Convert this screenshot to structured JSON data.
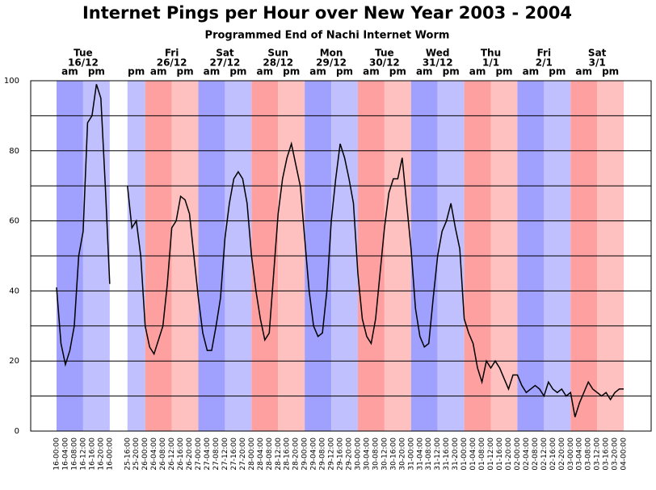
{
  "chart_data": {
    "type": "line",
    "title": "Internet Pings per Hour over New Year 2003 - 2004",
    "subtitle": "Programmed End of Nachi Internet Worm",
    "categories": [
      "16-00:00",
      null,
      "16-04:00",
      null,
      "16-08:00",
      null,
      "16-12:00",
      null,
      "16-16:00",
      null,
      "16-20:00",
      null,
      "16-00:00",
      null,
      null,
      null,
      "25-16:00",
      null,
      "25-20:00",
      null,
      "26-00:00",
      null,
      "26-04:00",
      null,
      "26-08:00",
      null,
      "26-12:00",
      null,
      "26-16:00",
      null,
      "26-20:00",
      null,
      "27-00:00",
      null,
      "27-04:00",
      null,
      "27-08:00",
      null,
      "27-12:00",
      null,
      "27-16:00",
      null,
      "27-20:00",
      null,
      "28-00:00",
      null,
      "28-04:00",
      null,
      "28-08:00",
      null,
      "28-12:00",
      null,
      "28-16:00",
      null,
      "28-20:00",
      null,
      "29-00:00",
      null,
      "29-04:00",
      null,
      "29-08:00",
      null,
      "29-12:00",
      null,
      "29-16:00",
      null,
      "29-20:00",
      null,
      "30-00:00",
      null,
      "30-04:00",
      null,
      "30-08:00",
      null,
      "30-12:00",
      null,
      "30-16:00",
      null,
      "30-20:00",
      null,
      "31-00:00",
      null,
      "31-04:00",
      null,
      "31-08:00",
      null,
      "31-12:00",
      null,
      "31-16:00",
      null,
      "31-20:00",
      null,
      "01-00:00",
      null,
      "01-04:00",
      null,
      "01-08:00",
      null,
      "01-12:00",
      null,
      "01-16:00",
      null,
      "01-20:00",
      null,
      "02-00:00",
      null,
      "02-04:00",
      null,
      "02-08:00",
      null,
      "02-12:00",
      null,
      "02-16:00",
      null,
      "02-20:00",
      null,
      "03-00:00",
      null,
      "03-04:00",
      null,
      "03-08:00",
      null,
      "03-12:00",
      null,
      "03-16:00",
      null,
      "03-20:00",
      null,
      "04-00:00"
    ],
    "series": [
      {
        "color": "#000000",
        "values": [
          41,
          25,
          19,
          23,
          30,
          50,
          57,
          88,
          90,
          99,
          95,
          70,
          42,
          null,
          null,
          null,
          70,
          58,
          60,
          50,
          30,
          24,
          22,
          26,
          30,
          42,
          58,
          60,
          67,
          66,
          62,
          50,
          38,
          28,
          23,
          23,
          30,
          38,
          55,
          65,
          72,
          74,
          72,
          65,
          50,
          40,
          32,
          26,
          28,
          45,
          62,
          72,
          78,
          82,
          76,
          70,
          55,
          40,
          30,
          27,
          28,
          40,
          60,
          72,
          82,
          78,
          72,
          65,
          45,
          32,
          27,
          25,
          32,
          45,
          58,
          68,
          72,
          72,
          78,
          65,
          52,
          35,
          27,
          24,
          25,
          38,
          50,
          57,
          60,
          65,
          58,
          52,
          32,
          28,
          25,
          18,
          14,
          20,
          18,
          20,
          18,
          15,
          12,
          16,
          16,
          13,
          11,
          12,
          13,
          12,
          10,
          14,
          12,
          11,
          12,
          10,
          11,
          4,
          8,
          11,
          14,
          12,
          11,
          10,
          11,
          9,
          11,
          12,
          12
        ]
      }
    ],
    "ylim": [
      0,
      100
    ],
    "yticks": [
      0,
      20,
      40,
      60,
      80,
      100
    ],
    "minor_yticks": [
      10,
      30,
      50,
      70,
      90
    ],
    "grid": true,
    "days": [
      {
        "name": "Tue",
        "date": "16/12",
        "am": "am",
        "pm": "pm",
        "am_color": "#a0a0ff",
        "pm_color": "#c0c0ff"
      },
      {
        "pm": "pm",
        "pm_color": "#c0c0ff"
      },
      {
        "name": "Fri",
        "date": "26/12",
        "am": "am",
        "pm": "pm",
        "am_color": "#ffa0a0",
        "pm_color": "#ffc0c0"
      },
      {
        "name": "Sat",
        "date": "27/12",
        "am": "am",
        "pm": "pm",
        "am_color": "#a0a0ff",
        "pm_color": "#c0c0ff"
      },
      {
        "name": "Sun",
        "date": "28/12",
        "am": "am",
        "pm": "pm",
        "am_color": "#ffa0a0",
        "pm_color": "#ffc0c0"
      },
      {
        "name": "Mon",
        "date": "29/12",
        "am": "am",
        "pm": "pm",
        "am_color": "#a0a0ff",
        "pm_color": "#c0c0ff"
      },
      {
        "name": "Tue",
        "date": "30/12",
        "am": "am",
        "pm": "pm",
        "am_color": "#ffa0a0",
        "pm_color": "#ffc0c0"
      },
      {
        "name": "Wed",
        "date": "31/12",
        "am": "am",
        "pm": "pm",
        "am_color": "#a0a0ff",
        "pm_color": "#c0c0ff"
      },
      {
        "name": "Thu",
        "date": "1/1",
        "am": "am",
        "pm": "pm",
        "am_color": "#ffa0a0",
        "pm_color": "#ffc0c0"
      },
      {
        "name": "Fri",
        "date": "2/1",
        "am": "am",
        "pm": "pm",
        "am_color": "#a0a0ff",
        "pm_color": "#c0c0ff"
      },
      {
        "name": "Sat",
        "date": "3/1",
        "am": "am",
        "pm": "pm",
        "am_color": "#ffa0a0",
        "pm_color": "#ffc0c0"
      }
    ]
  }
}
